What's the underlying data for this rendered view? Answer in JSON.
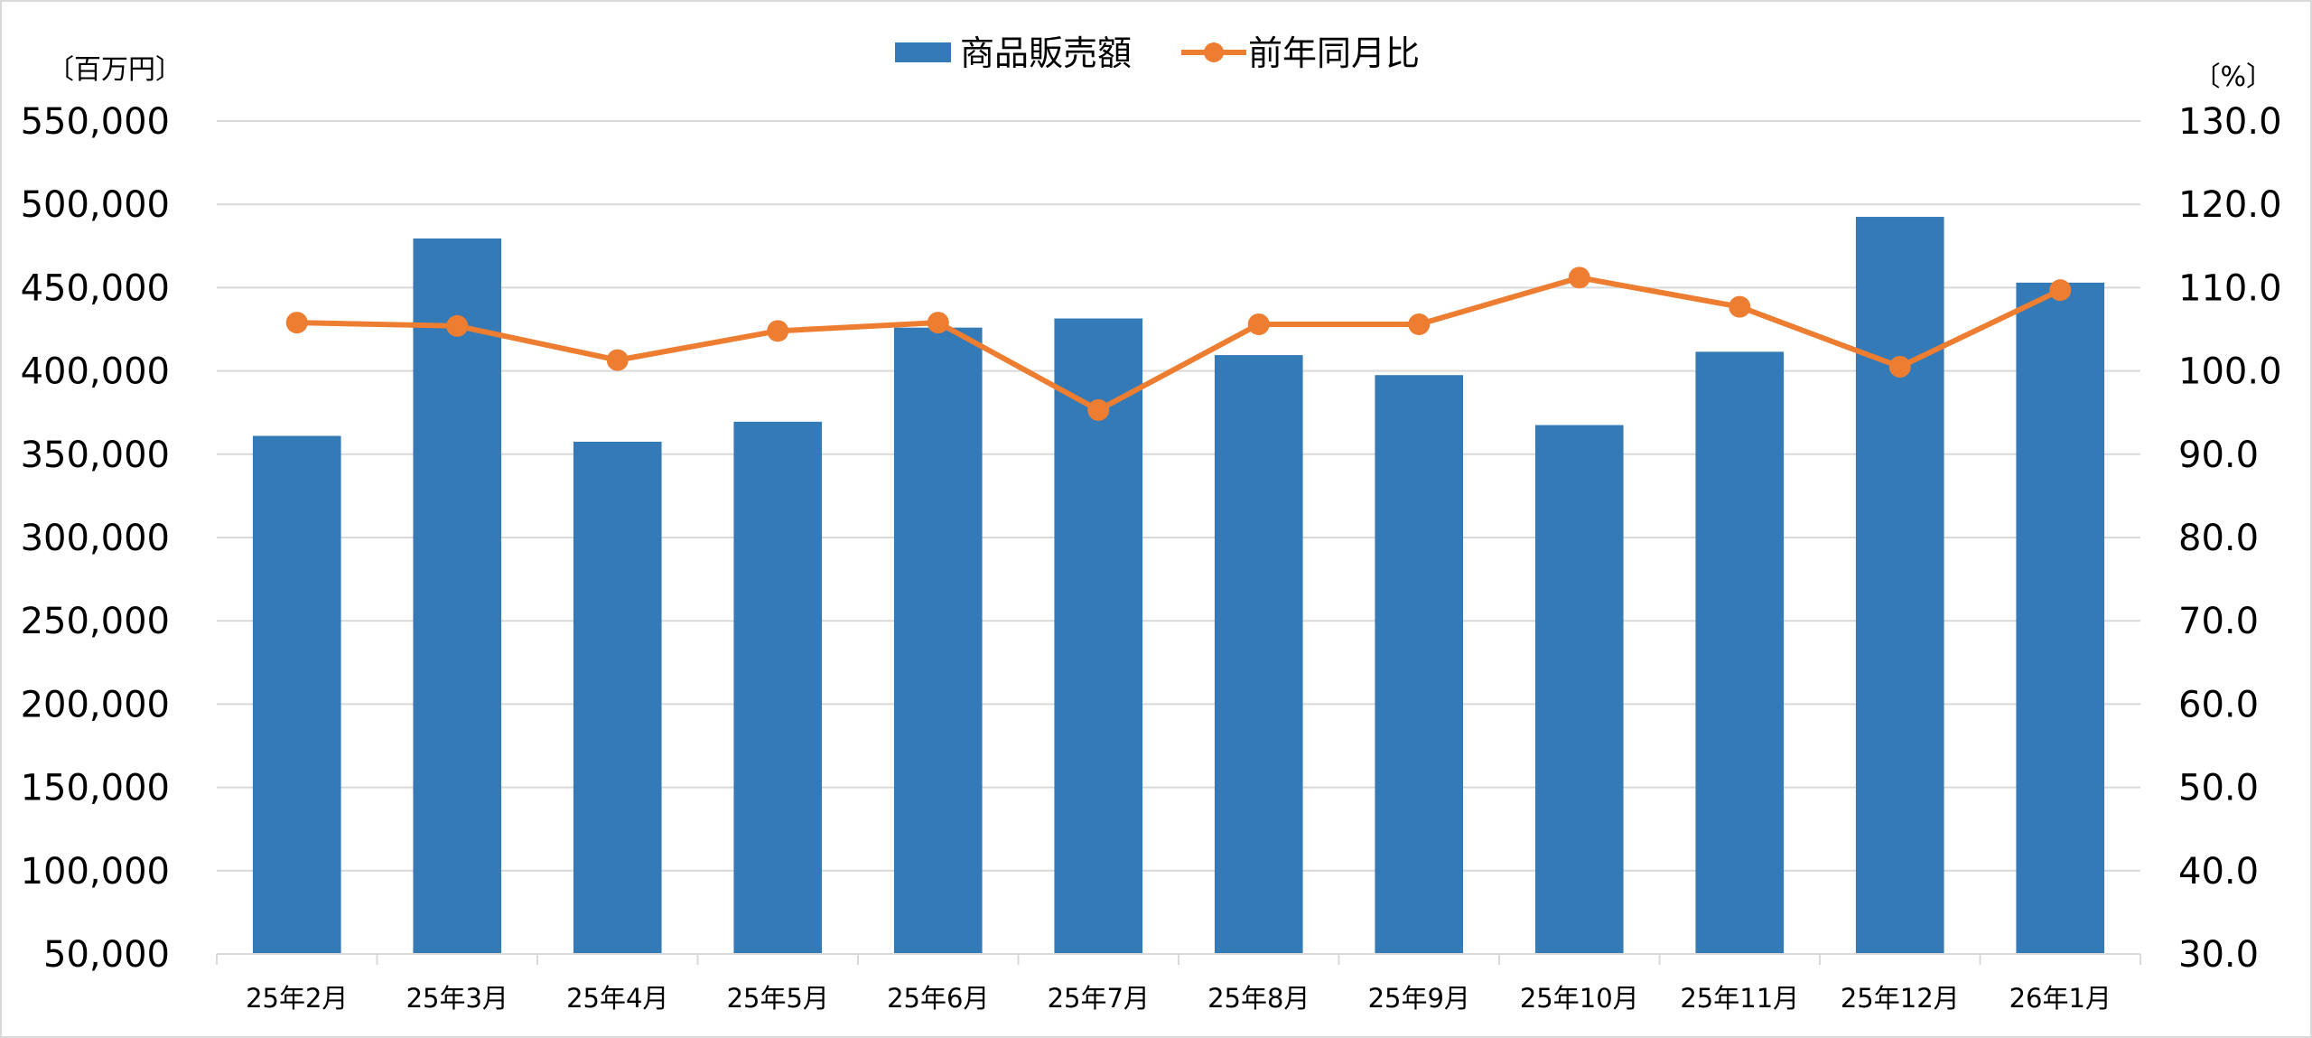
{
  "chart_data": {
    "type": "bar",
    "categories": [
      "25年2月",
      "25年3月",
      "25年4月",
      "25年5月",
      "25年6月",
      "25年7月",
      "25年8月",
      "25年9月",
      "25年10月",
      "25年11月",
      "25年12月",
      "26年1月"
    ],
    "series": [
      {
        "name": "商品販売額",
        "type": "bar",
        "axis": "left",
        "color": "#337ab7",
        "values": [
          361000,
          479500,
          357500,
          369500,
          426000,
          431500,
          409500,
          397500,
          367500,
          411500,
          492500,
          453000
        ]
      },
      {
        "name": "前年同月比",
        "type": "line",
        "axis": "right",
        "color": "#ed7d31",
        "values": [
          105.8,
          105.4,
          101.3,
          104.8,
          105.8,
          95.3,
          105.6,
          105.6,
          111.2,
          107.7,
          100.5,
          109.7
        ]
      }
    ],
    "y_left": {
      "unit_label": "〔百万円〕",
      "min": 50000,
      "max": 550000,
      "step": 50000,
      "tick_labels": [
        "50,000",
        "100,000",
        "150,000",
        "200,000",
        "250,000",
        "300,000",
        "350,000",
        "400,000",
        "450,000",
        "500,000",
        "550,000"
      ]
    },
    "y_right": {
      "unit_label": "〔%〕",
      "min": 30,
      "max": 130,
      "step": 10,
      "tick_labels": [
        "30.0",
        "40.0",
        "50.0",
        "60.0",
        "70.0",
        "80.0",
        "90.0",
        "100.0",
        "110.0",
        "120.0",
        "130.0"
      ]
    },
    "grid": true,
    "legend_position": "top-center",
    "gridline_color": "#d9d9d9"
  }
}
